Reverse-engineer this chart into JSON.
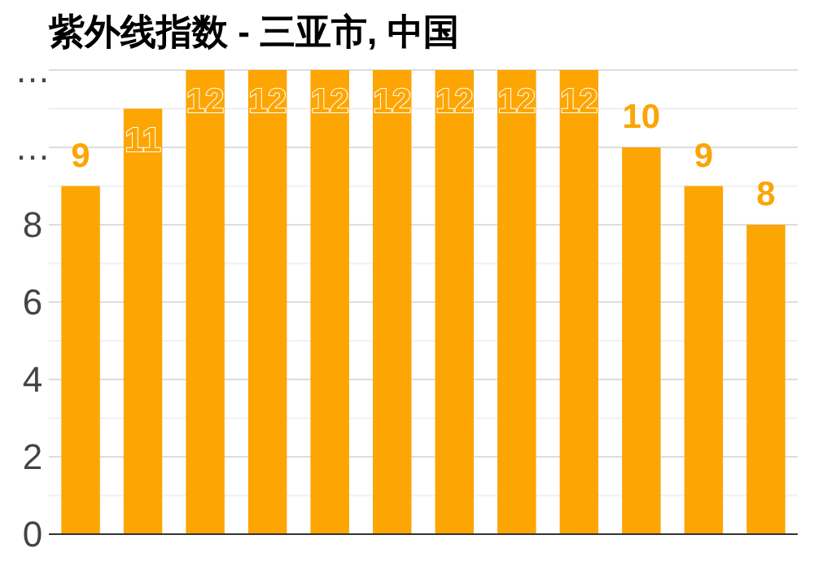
{
  "chart_data": {
    "type": "bar",
    "title": "紫外线指数 - 三亚市, 中国",
    "categories": [
      null,
      null,
      null,
      null,
      null,
      null,
      null,
      null,
      null,
      null,
      null,
      null
    ],
    "values": [
      9,
      11,
      12,
      12,
      12,
      12,
      12,
      12,
      12,
      10,
      9,
      8
    ],
    "color": "#fca503",
    "ylim": [
      0,
      12
    ],
    "yticks": [
      0,
      {
        "value": 1,
        "label": null
      },
      2,
      {
        "value": 3,
        "label": null
      },
      4,
      {
        "value": 5,
        "label": null
      },
      6,
      {
        "value": 7,
        "label": null
      },
      8,
      {
        "value": 9,
        "label": null
      },
      {
        "value": 10,
        "label": "…"
      },
      {
        "value": 11,
        "label": null
      },
      {
        "value": 12,
        "label": "…"
      }
    ],
    "grid": "y",
    "data_labels": true
  }
}
